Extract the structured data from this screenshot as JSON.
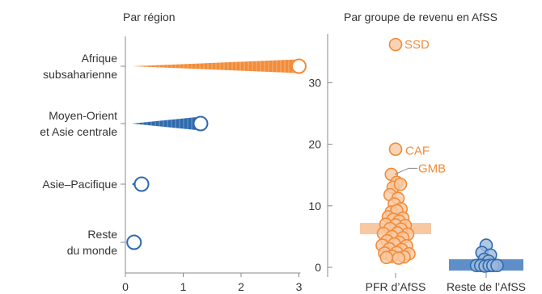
{
  "colors": {
    "orange": "#F28C38",
    "orange_light": "#F8C8A2",
    "blue": "#2E6AAE",
    "blue_light": "#9DB9DC",
    "axis": "#888888",
    "text": "#333333"
  },
  "chart_data": [
    {
      "type": "bar",
      "title": "Par région",
      "xlabel": "",
      "ylabel": "",
      "xlim": [
        0,
        3
      ],
      "xticks": [
        "0",
        "1",
        "2",
        "3"
      ],
      "grid": false,
      "categories": [
        {
          "label_lines": [
            "Afrique",
            "subsaharienne"
          ],
          "value": 3.0,
          "color": "orange"
        },
        {
          "label_lines": [
            "Moyen-Orient",
            "et Asie centrale"
          ],
          "value": 1.3,
          "color": "blue"
        },
        {
          "label_lines": [
            "Asie–Pacifique"
          ],
          "value": 0.28,
          "color": "blue"
        },
        {
          "label_lines": [
            "Reste",
            "du monde"
          ],
          "value": 0.15,
          "color": "blue"
        }
      ]
    },
    {
      "type": "scatter",
      "title": "Par groupe de revenu en AfSS",
      "xlabel": "",
      "ylabel": "",
      "ylim": [
        0,
        36
      ],
      "yticks": [
        "0",
        "10",
        "20",
        "30"
      ],
      "grid": false,
      "groups": [
        {
          "name": "PFR d’AfSS",
          "color": "orange",
          "median": 6.3,
          "points": [
            {
              "x": 0,
              "y": 36.2
            },
            {
              "x": 0,
              "y": 19.2
            },
            {
              "x": -0.35,
              "y": 15.1
            },
            {
              "x": 0.1,
              "y": 13.8
            },
            {
              "x": -0.2,
              "y": 13.0
            },
            {
              "x": 0.4,
              "y": 13.5
            },
            {
              "x": -0.45,
              "y": 11.8
            },
            {
              "x": 0.2,
              "y": 11.2
            },
            {
              "x": -0.1,
              "y": 10.3
            },
            {
              "x": 0.45,
              "y": 9.5
            },
            {
              "x": -0.35,
              "y": 9.0
            },
            {
              "x": 0.1,
              "y": 9.2
            },
            {
              "x": -0.6,
              "y": 8.2
            },
            {
              "x": 0.6,
              "y": 8.0
            },
            {
              "x": -0.2,
              "y": 7.8
            },
            {
              "x": 0.3,
              "y": 7.5
            },
            {
              "x": -0.8,
              "y": 7.0
            },
            {
              "x": 0.0,
              "y": 6.9
            },
            {
              "x": 0.8,
              "y": 6.8
            },
            {
              "x": -0.45,
              "y": 6.3
            },
            {
              "x": 0.45,
              "y": 6.2
            },
            {
              "x": -1.0,
              "y": 5.5
            },
            {
              "x": 0.15,
              "y": 5.6
            },
            {
              "x": 1.0,
              "y": 5.4
            },
            {
              "x": -0.3,
              "y": 5.0
            },
            {
              "x": 0.6,
              "y": 4.8
            },
            {
              "x": -0.7,
              "y": 4.3
            },
            {
              "x": 0.3,
              "y": 4.1
            },
            {
              "x": -1.1,
              "y": 3.6
            },
            {
              "x": -0.1,
              "y": 3.8
            },
            {
              "x": 0.9,
              "y": 3.5
            },
            {
              "x": -0.5,
              "y": 3.0
            },
            {
              "x": 0.5,
              "y": 2.9
            },
            {
              "x": -0.9,
              "y": 2.3
            },
            {
              "x": 0.1,
              "y": 2.4
            },
            {
              "x": 1.1,
              "y": 2.2
            },
            {
              "x": -0.3,
              "y": 1.8
            },
            {
              "x": 0.7,
              "y": 1.7
            },
            {
              "x": -0.75,
              "y": 1.6
            },
            {
              "x": 0.25,
              "y": 1.5
            }
          ]
        },
        {
          "name": "Reste de l’AfSS",
          "color": "blue",
          "median": 0.4,
          "points": [
            {
              "x": 0.0,
              "y": 3.6
            },
            {
              "x": -0.35,
              "y": 2.4
            },
            {
              "x": 0.35,
              "y": 2.0
            },
            {
              "x": -0.15,
              "y": 1.3
            },
            {
              "x": 0.2,
              "y": 1.0
            },
            {
              "x": -0.8,
              "y": 0.3
            },
            {
              "x": -0.45,
              "y": 0.3
            },
            {
              "x": -0.1,
              "y": 0.2
            },
            {
              "x": 0.25,
              "y": 0.3
            },
            {
              "x": 0.55,
              "y": 0.3
            },
            {
              "x": 0.9,
              "y": 0.3
            }
          ]
        }
      ],
      "annotations": [
        {
          "text": "SSD",
          "y": 36.2
        },
        {
          "text": "CAF",
          "y": 19.2
        },
        {
          "text": "GMB",
          "y": 15.1
        }
      ]
    }
  ]
}
